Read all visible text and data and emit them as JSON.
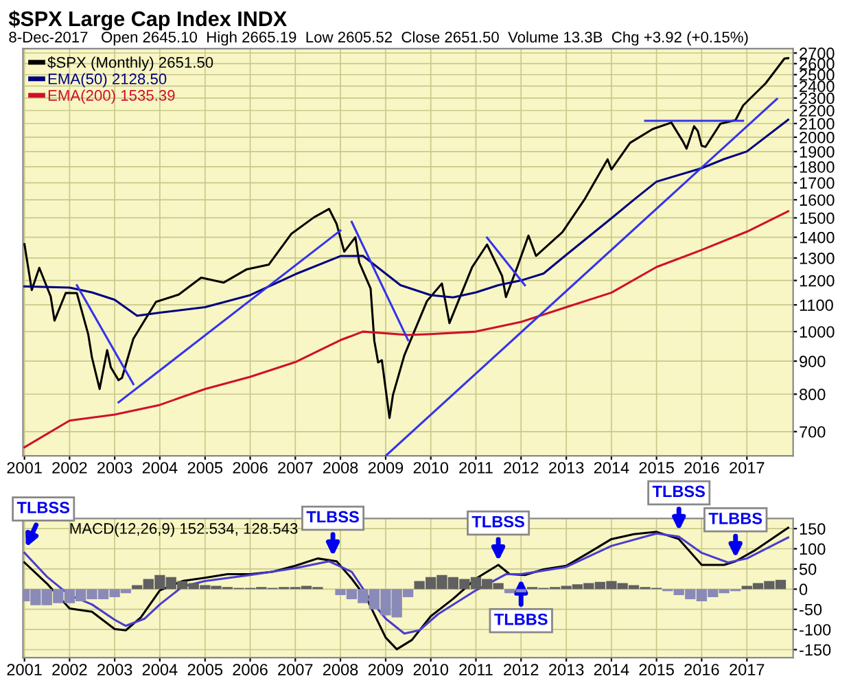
{
  "chart_data": [
    {
      "type": "line",
      "title": "$SPX Large Cap Index INDX",
      "subtitle": "8-Dec-2017   Open 2645.10  High 2665.19  Low 2605.52  Close 2651.50  Volume 13.3B  Chg +3.92 (+0.15%)",
      "log": true,
      "grid": true,
      "legend": "top left",
      "xlim": [
        "2000-12-20",
        "2018-01-10"
      ],
      "ylim": [
        642,
        2742
      ],
      "xticks": [
        {
          "value": "2001-01",
          "label": "2001"
        },
        {
          "value": "2002-01",
          "label": "2002"
        },
        {
          "value": "2003-01",
          "label": "2003"
        },
        {
          "value": "2004-01",
          "label": "2004"
        },
        {
          "value": "2005-01",
          "label": "2005"
        },
        {
          "value": "2006-01",
          "label": "2006"
        },
        {
          "value": "2007-01",
          "label": "2007"
        },
        {
          "value": "2008-01",
          "label": "2008"
        },
        {
          "value": "2009-01",
          "label": "2009"
        },
        {
          "value": "2010-01",
          "label": "2010"
        },
        {
          "value": "2011-01",
          "label": "2011"
        },
        {
          "value": "2012-01",
          "label": "2012"
        },
        {
          "value": "2013-01",
          "label": "2013"
        },
        {
          "value": "2014-01",
          "label": "2014"
        },
        {
          "value": "2015-01",
          "label": "2015"
        },
        {
          "value": "2016-01",
          "label": "2016"
        },
        {
          "value": "2017-01",
          "label": "2017"
        }
      ],
      "yticks": [
        700,
        800,
        900,
        1000,
        1100,
        1200,
        1300,
        1400,
        1500,
        1600,
        1700,
        1800,
        1900,
        2000,
        2100,
        2200,
        2300,
        2400,
        2500,
        2600,
        2700
      ],
      "series": [
        {
          "name": "$SPX (Monthly) 2651.50",
          "color": "#000000",
          "x": [
            "2001-01",
            "2001-03",
            "2001-05",
            "2001-08",
            "2001-09",
            "2001-12",
            "2002-03",
            "2002-06",
            "2002-07",
            "2002-09",
            "2002-11",
            "2002-12",
            "2003-02",
            "2003-03",
            "2003-06",
            "2003-12",
            "2004-06",
            "2004-12",
            "2005-06",
            "2005-12",
            "2006-06",
            "2006-12",
            "2007-06",
            "2007-10",
            "2007-12",
            "2008-02",
            "2008-05",
            "2008-06",
            "2008-09",
            "2008-10",
            "2008-11",
            "2008-12",
            "2009-02",
            "2009-03",
            "2009-06",
            "2009-12",
            "2010-04",
            "2010-06",
            "2010-12",
            "2011-04",
            "2011-08",
            "2011-09",
            "2011-12",
            "2012-03",
            "2012-05",
            "2012-12",
            "2013-06",
            "2013-12",
            "2014-01",
            "2014-06",
            "2014-12",
            "2015-05",
            "2015-08",
            "2015-09",
            "2015-11",
            "2015-12",
            "2016-01",
            "2016-02",
            "2016-06",
            "2016-10",
            "2016-12",
            "2017-06",
            "2017-11",
            "2017-12"
          ],
          "values": [
            1366,
            1160,
            1255,
            1134,
            1040,
            1148,
            1147,
            990,
            912,
            815,
            936,
            880,
            841,
            848,
            975,
            1112,
            1141,
            1212,
            1191,
            1248,
            1270,
            1418,
            1503,
            1549,
            1468,
            1330,
            1400,
            1280,
            1166,
            968,
            896,
            903,
            735,
            798,
            919,
            1115,
            1187,
            1031,
            1258,
            1364,
            1219,
            1131,
            1258,
            1408,
            1310,
            1426,
            1606,
            1848,
            1783,
            1960,
            2059,
            2107,
            1972,
            1920,
            2080,
            2044,
            1940,
            1932,
            2099,
            2126,
            2239,
            2423,
            2648,
            2651
          ]
        },
        {
          "name": "EMA(50) 2128.50",
          "color": "#000080",
          "x": [
            "2001-01",
            "2002-01",
            "2002-07",
            "2003-01",
            "2003-07",
            "2004-01",
            "2005-01",
            "2006-01",
            "2007-01",
            "2008-01",
            "2008-07",
            "2009-05",
            "2010-01",
            "2010-07",
            "2011-01",
            "2011-07",
            "2012-01",
            "2012-07",
            "2013-01",
            "2014-01",
            "2014-07",
            "2015-01",
            "2016-01",
            "2016-07",
            "2017-01",
            "2017-12"
          ],
          "values": [
            1175,
            1170,
            1150,
            1120,
            1058,
            1070,
            1091,
            1139,
            1227,
            1309,
            1310,
            1180,
            1139,
            1130,
            1150,
            1180,
            1200,
            1230,
            1315,
            1498,
            1600,
            1707,
            1791,
            1850,
            1901,
            2128.5
          ]
        },
        {
          "name": "EMA(200) 1535.39",
          "color": "#d0102a",
          "x": [
            "2001-01",
            "2002-01",
            "2003-01",
            "2004-01",
            "2005-01",
            "2006-01",
            "2007-01",
            "2008-01",
            "2008-07",
            "2009-07",
            "2010-01",
            "2011-01",
            "2012-01",
            "2013-01",
            "2014-01",
            "2015-01",
            "2016-01",
            "2017-01",
            "2017-12"
          ],
          "values": [
            662,
            728,
            744,
            770,
            815,
            851,
            897,
            970,
            1000,
            988,
            991,
            1000,
            1035,
            1091,
            1149,
            1259,
            1338,
            1428,
            1535.39
          ]
        },
        {
          "color": "#3333ee",
          "x": [
            "2002-03",
            "2003-06"
          ],
          "values": [
            1180,
            829
          ]
        },
        {
          "color": "#3333ee",
          "x": [
            "2003-02",
            "2008-01"
          ],
          "values": [
            777,
            1434
          ]
        },
        {
          "color": "#3333ee",
          "x": [
            "2008-04",
            "2009-07"
          ],
          "values": [
            1479,
            970
          ]
        },
        {
          "color": "#3333ee",
          "x": [
            "2009-01",
            "2017-09"
          ],
          "values": [
            642,
            2293
          ]
        },
        {
          "color": "#3333ee",
          "x": [
            "2011-04",
            "2012-02"
          ],
          "values": [
            1398,
            1180
          ]
        },
        {
          "color": "#3333ee",
          "x": [
            "2014-10",
            "2016-12"
          ],
          "values": [
            2120,
            2120
          ]
        }
      ]
    },
    {
      "type": "line",
      "grid": true,
      "xlim": [
        "2000-12-20",
        "2018-01-10"
      ],
      "ylim": [
        -170,
        175
      ],
      "xticks": [
        {
          "value": "2001-01",
          "label": "2001"
        },
        {
          "value": "2002-01",
          "label": "2002"
        },
        {
          "value": "2003-01",
          "label": "2003"
        },
        {
          "value": "2004-01",
          "label": "2004"
        },
        {
          "value": "2005-01",
          "label": "2005"
        },
        {
          "value": "2006-01",
          "label": "2006"
        },
        {
          "value": "2007-01",
          "label": "2007"
        },
        {
          "value": "2008-01",
          "label": "2008"
        },
        {
          "value": "2009-01",
          "label": "2009"
        },
        {
          "value": "2010-01",
          "label": "2010"
        },
        {
          "value": "2011-01",
          "label": "2011"
        },
        {
          "value": "2012-01",
          "label": "2012"
        },
        {
          "value": "2013-01",
          "label": "2013"
        },
        {
          "value": "2014-01",
          "label": "2014"
        },
        {
          "value": "2015-01",
          "label": "2015"
        },
        {
          "value": "2016-01",
          "label": "2016"
        },
        {
          "value": "2017-01",
          "label": "2017"
        }
      ],
      "yticks": [
        -150,
        -100,
        -50,
        0,
        50,
        100,
        150
      ],
      "annotations": [
        "MACD(12,26,9) 152.534, 128.543",
        {
          "text": "TLBSS",
          "x": "2001-01",
          "y": 95
        },
        {
          "text": "TLBSS",
          "x": "2007-11",
          "y": 72
        },
        {
          "text": "TLBSS",
          "x": "2011-07",
          "y": 60
        },
        {
          "text": "TLBSS",
          "x": "2015-07",
          "y": 135
        },
        {
          "text": "TLBBS",
          "x": "2012-01",
          "y": 35
        },
        {
          "text": "TLBBS",
          "x": "2016-10",
          "y": 68
        }
      ],
      "series": [
        {
          "type": "bar",
          "x": [
            "2001-01",
            "2001-04",
            "2001-07",
            "2001-10",
            "2002-01",
            "2002-04",
            "2002-07",
            "2002-10",
            "2003-01",
            "2003-04",
            "2003-07",
            "2003-10",
            "2004-01",
            "2004-04",
            "2004-07",
            "2004-10",
            "2005-01",
            "2005-04",
            "2005-07",
            "2005-10",
            "2006-01",
            "2006-04",
            "2006-07",
            "2006-10",
            "2007-01",
            "2007-04",
            "2007-07",
            "2007-10",
            "2008-01",
            "2008-04",
            "2008-07",
            "2008-10",
            "2009-01",
            "2009-04",
            "2009-07",
            "2009-10",
            "2010-01",
            "2010-04",
            "2010-07",
            "2010-10",
            "2011-01",
            "2011-04",
            "2011-07",
            "2011-10",
            "2012-01",
            "2012-04",
            "2012-07",
            "2012-10",
            "2013-01",
            "2013-04",
            "2013-07",
            "2013-10",
            "2014-01",
            "2014-04",
            "2014-07",
            "2014-10",
            "2015-01",
            "2015-04",
            "2015-07",
            "2015-10",
            "2016-01",
            "2016-04",
            "2016-07",
            "2016-10",
            "2017-01",
            "2017-04",
            "2017-07",
            "2017-10"
          ],
          "values": [
            -30,
            -40,
            -40,
            -35,
            -35,
            -30,
            -25,
            -25,
            -20,
            -10,
            10,
            25,
            35,
            30,
            20,
            15,
            10,
            8,
            5,
            3,
            3,
            5,
            3,
            5,
            5,
            8,
            5,
            0,
            -15,
            -25,
            -35,
            -50,
            -65,
            -70,
            -20,
            20,
            30,
            35,
            30,
            25,
            30,
            25,
            15,
            -10,
            -8,
            5,
            3,
            5,
            8,
            12,
            15,
            18,
            20,
            15,
            10,
            5,
            3,
            -5,
            -15,
            -25,
            -30,
            -20,
            -10,
            -5,
            8,
            15,
            20,
            23
          ],
          "colors": [
            "#8a8ab8",
            "#8a8ab8",
            "#8a8ab8",
            "#8a8ab8",
            "#8a8ab8",
            "#8a8ab8",
            "#8a8ab8",
            "#8a8ab8",
            "#8a8ab8",
            "#8a8ab8",
            "#606060",
            "#606060",
            "#606060",
            "#606060",
            "#606060",
            "#606060",
            "#606060",
            "#606060",
            "#606060",
            "#606060",
            "#606060",
            "#606060",
            "#606060",
            "#606060",
            "#606060",
            "#606060",
            "#606060",
            "#606060",
            "#8a8ab8",
            "#8a8ab8",
            "#8a8ab8",
            "#8a8ab8",
            "#8a8ab8",
            "#8a8ab8",
            "#8a8ab8",
            "#606060",
            "#606060",
            "#606060",
            "#606060",
            "#606060",
            "#606060",
            "#606060",
            "#606060",
            "#8a8ab8",
            "#8a8ab8",
            "#606060",
            "#606060",
            "#606060",
            "#606060",
            "#606060",
            "#606060",
            "#606060",
            "#606060",
            "#606060",
            "#606060",
            "#606060",
            "#606060",
            "#8a8ab8",
            "#8a8ab8",
            "#8a8ab8",
            "#8a8ab8",
            "#8a8ab8",
            "#8a8ab8",
            "#8a8ab8",
            "#606060",
            "#606060",
            "#606060",
            "#606060"
          ]
        },
        {
          "color": "#000000",
          "x": [
            "2001-01",
            "2001-07",
            "2002-01",
            "2002-07",
            "2003-01",
            "2003-04",
            "2003-08",
            "2004-01",
            "2004-07",
            "2005-01",
            "2005-07",
            "2006-01",
            "2006-07",
            "2007-01",
            "2007-07",
            "2007-12",
            "2008-04",
            "2008-08",
            "2009-01",
            "2009-04",
            "2009-08",
            "2010-01",
            "2010-07",
            "2011-01",
            "2011-07",
            "2011-10",
            "2012-02",
            "2012-07",
            "2013-01",
            "2013-07",
            "2014-01",
            "2014-07",
            "2015-01",
            "2015-07",
            "2016-01",
            "2016-07",
            "2016-10",
            "2017-03",
            "2017-12"
          ],
          "values": [
            66,
            14,
            -48,
            -56,
            -99,
            -102,
            -70,
            -3,
            20,
            28,
            37,
            37,
            43,
            58,
            76,
            69,
            26,
            -24,
            -120,
            -149,
            -126,
            -67,
            -24,
            26,
            60,
            37,
            35,
            49,
            58,
            90,
            124,
            136,
            142,
            124,
            60,
            60,
            69,
            95,
            152
          ]
        },
        {
          "color": "#4b3ccf",
          "x": [
            "2001-01",
            "2001-07",
            "2002-01",
            "2002-07",
            "2003-01",
            "2003-04",
            "2003-09",
            "2004-01",
            "2004-07",
            "2005-01",
            "2006-01",
            "2007-01",
            "2007-10",
            "2008-04",
            "2008-09",
            "2009-01",
            "2009-06",
            "2009-10",
            "2010-03",
            "2011-01",
            "2011-09",
            "2012-01",
            "2013-01",
            "2014-01",
            "2015-01",
            "2015-07",
            "2016-01",
            "2016-08",
            "2017-01",
            "2017-12"
          ],
          "values": [
            90,
            31,
            -15,
            -38,
            -76,
            -91,
            -73,
            -38,
            6,
            20,
            35,
            52,
            69,
            43,
            -27,
            -73,
            -110,
            -102,
            -62,
            -3,
            37,
            37,
            55,
            107,
            138,
            130,
            90,
            66,
            76,
            128
          ]
        }
      ]
    }
  ]
}
